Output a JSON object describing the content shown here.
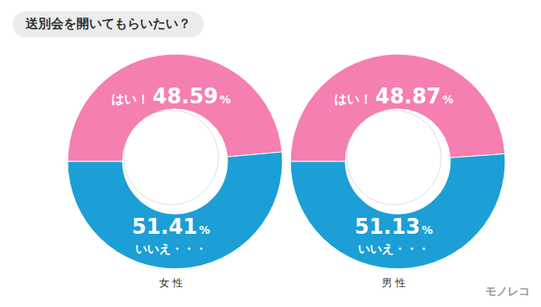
{
  "title": "送別会を開いてもらいたい？",
  "watermark": "モノレコ",
  "chart_data": [
    {
      "type": "pie",
      "title": "女 性",
      "categories": [
        "はい！",
        "いいえ・・・"
      ],
      "values": [
        48.59,
        51.41
      ],
      "value_labels": [
        "48.59%",
        "51.41%"
      ],
      "colors": [
        "#f47fb0",
        "#1b9fd6"
      ],
      "data_labels": true
    },
    {
      "type": "pie",
      "title": "男 性",
      "categories": [
        "はい！",
        "いいえ・・・"
      ],
      "values": [
        48.87,
        51.13
      ],
      "value_labels": [
        "48.87%",
        "51.13%"
      ],
      "colors": [
        "#f47fb0",
        "#1b9fd6"
      ],
      "data_labels": true
    }
  ]
}
